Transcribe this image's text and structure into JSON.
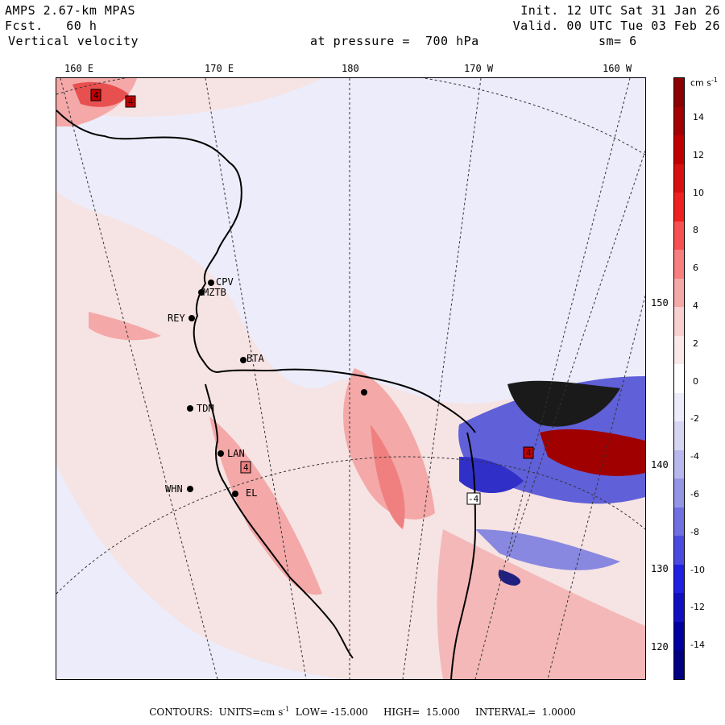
{
  "header": {
    "model": "AMPS 2.67-km MPAS",
    "fcst_label": "Fcst.",
    "fcst_value": "60 h",
    "field": "Vertical velocity",
    "init": "Init. 12 UTC Sat 31 Jan 26",
    "valid": "Valid. 00 UTC Tue 03 Feb 26",
    "pressure_label": "at pressure =",
    "pressure_value": "700 hPa",
    "smoothing": "sm= 6"
  },
  "map": {
    "top_longitudes": [
      "160 E",
      "170 E",
      "180",
      "170 W",
      "160 W"
    ],
    "right_longitudes": [
      "150 W",
      "140 W",
      "130 W",
      "120 W"
    ],
    "stations": [
      "CPV",
      "MZTB",
      "REY",
      "BTA",
      "TDM",
      "LAN",
      "WHN",
      "EL"
    ],
    "contour_markers": [
      "4",
      "4",
      "4",
      "4",
      "-4"
    ]
  },
  "colorbar": {
    "units": "cm s",
    "units_exp": "-1",
    "ticks": [
      "14",
      "12",
      "10",
      "8",
      "6",
      "4",
      "2",
      "0",
      "-2",
      "-4",
      "-6",
      "-8",
      "-10",
      "-12",
      "-14"
    ],
    "colors": [
      "#8b0000",
      "#a30000",
      "#c00000",
      "#d81010",
      "#ee2020",
      "#f85050",
      "#f87f7f",
      "#f4a8a8",
      "#f8d0d0",
      "#fbe8e8",
      "#ffffff",
      "#ececfa",
      "#d6d6f4",
      "#b8b8ee",
      "#9595e6",
      "#7070e0",
      "#4a4ae0",
      "#2020e0",
      "#1010c0",
      "#0000a0",
      "#000080"
    ]
  },
  "footer": {
    "contours_label": "CONTOURS:",
    "units_label": "UNITS=cm s",
    "units_exp": "-1",
    "low_label": "LOW=",
    "low_value": "-15.000",
    "high_label": "HIGH=",
    "high_value": "15.000",
    "interval_label": "INTERVAL=",
    "interval_value": "1.0000"
  }
}
